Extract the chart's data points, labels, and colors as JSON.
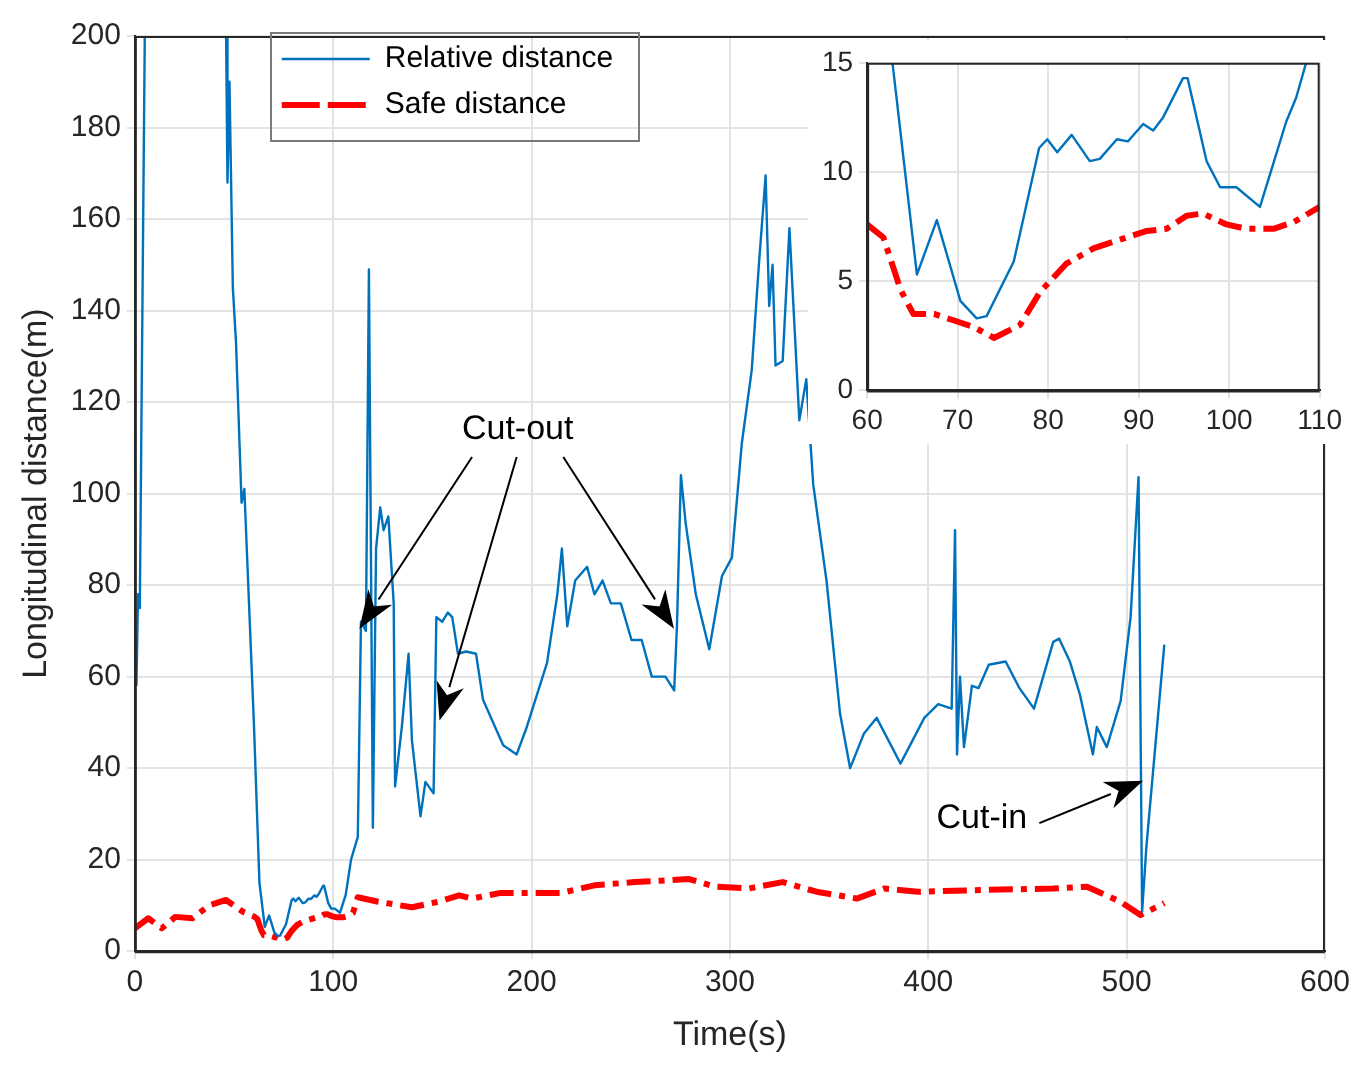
{
  "chart_data": [
    {
      "type": "line",
      "xlabel": "Time(s)",
      "ylabel": "Longitudinal distance(m)",
      "xlim": [
        0,
        600
      ],
      "xticks": [
        0,
        100,
        200,
        300,
        400,
        500,
        600
      ],
      "ylim": [
        0,
        200
      ],
      "yticks": [
        0,
        20,
        40,
        60,
        80,
        100,
        120,
        140,
        160,
        180,
        200
      ],
      "grid": true,
      "legend": "top left",
      "marker": "none",
      "annotations": [
        "Cut-out",
        "Cut-in"
      ],
      "series": [
        {
          "name": "Relative distance",
          "color": "#0072bd",
          "line_style": "solid",
          "x": [
            0.8,
            1.6,
            2.5,
            5,
            25,
            46,
            46.7,
            47.7,
            49.4,
            51,
            53.8,
            55.2,
            60,
            62.8,
            65.5,
            67.7,
            70.3,
            72.1,
            73.2,
            76.2,
            79,
            79.9,
            81,
            82.6,
            84.6,
            85.7,
            87.6,
            88.8,
            90.5,
            91.6,
            92.7,
            94.9,
            95.4,
            97.5,
            99,
            100.8,
            103.4,
            106.3,
            109,
            112.4,
            114,
            116.5,
            118,
            120,
            121.6,
            123.7,
            125.4,
            127.8,
            130.5,
            131.2,
            134.6,
            138,
            139.7,
            144,
            146.5,
            150.6,
            152,
            155,
            157.8,
            160,
            162.9,
            167,
            172,
            175.5,
            180.6,
            185.7,
            192.5,
            197.6,
            207.8,
            213,
            215.3,
            218,
            222,
            228,
            231.7,
            235.8,
            240,
            245,
            250.4,
            255.5,
            260.6,
            267.5,
            271.9,
            273.3,
            275.3,
            277.7,
            282.8,
            289.6,
            296,
            301,
            306,
            311,
            314.6,
            318,
            319.8,
            321.5,
            323,
            326.6,
            330,
            335,
            338.5,
            342,
            348.7,
            355.5,
            360.6,
            367.5,
            374,
            386,
            398,
            405,
            411.8,
            413.5,
            414.5,
            416,
            418,
            422,
            425.4,
            430.5,
            439,
            445.8,
            453.3,
            463,
            466,
            471.4,
            476.5,
            483,
            485,
            490,
            497,
            502,
            506,
            507.8,
            510,
            519
          ],
          "values": [
            58,
            78,
            75,
            200,
            null,
            200,
            168,
            190,
            145,
            133,
            98,
            101,
            50,
            15,
            5.3,
            7.8,
            4.1,
            3.3,
            3.4,
            5.9,
            11.1,
            11.5,
            10.9,
            11.7,
            10.5,
            10.6,
            11.5,
            11.4,
            12.2,
            11.9,
            12.5,
            14.3,
            14.3,
            10.5,
            9.3,
            9.3,
            8.4,
            12.3,
            20,
            25,
            72,
            70,
            149,
            27,
            88,
            97,
            92,
            95,
            76,
            36,
            49,
            65,
            46,
            29.5,
            37,
            34.5,
            73,
            72,
            74,
            73,
            65,
            65.5,
            65,
            55,
            50,
            45,
            43,
            49,
            63,
            78,
            88,
            71,
            81,
            84,
            78,
            81,
            76,
            76,
            68,
            68,
            60,
            60,
            57,
            71,
            104,
            93.5,
            78,
            66,
            82,
            86,
            111,
            127,
            150,
            169.5,
            141,
            150,
            128,
            129,
            158,
            116,
            125,
            102,
            81,
            52,
            40,
            47.5,
            51,
            41,
            51,
            54,
            53,
            92,
            43,
            60,
            44.6,
            58,
            57.5,
            62.6,
            63.3,
            57.6,
            53,
            67.6,
            68.3,
            63.3,
            56,
            43,
            49,
            44.6,
            54.7,
            73,
            103.6,
            8.6,
            23,
            67
          ]
        },
        {
          "name": "Safe distance",
          "color": "#ff0000",
          "line_style": "dashed",
          "x": [
            0,
            6.8,
            13.6,
            20.4,
            29,
            37.5,
            46,
            54.5,
            60,
            61.8,
            63.7,
            65.1,
            67.4,
            69.6,
            71.8,
            74,
            76.9,
            79.1,
            82,
            85,
            87.9,
            90.9,
            93.1,
            95.3,
            97.1,
            99.7,
            101.9,
            104.9,
            107.1,
            110,
            112.4,
            122.7,
            139.7,
            153,
            163.5,
            170,
            184,
            214.6,
            231.7,
            252,
            265,
            279,
            292.5,
            309.5,
            326.6,
            343.6,
            364,
            377.7,
            394.7,
            428.8,
            462.9,
            480,
            497,
            507,
            519
          ],
          "values": [
            5,
            7.2,
            5,
            7.5,
            7.2,
            10,
            11.2,
            8.6,
            7.6,
            7,
            4.6,
            3.5,
            3.5,
            3.2,
            2.9,
            2.4,
            3,
            4.5,
            5.8,
            6.5,
            6.9,
            7.3,
            7.4,
            8,
            8.1,
            7.6,
            7.4,
            7.4,
            7.7,
            8.4,
            11.8,
            10.8,
            9.6,
            10.8,
            12.2,
            11.5,
            12.7,
            12.7,
            14.4,
            15.1,
            15.4,
            15.8,
            14.1,
            13.7,
            15.1,
            13,
            11.5,
            13.7,
            13,
            13.4,
            13.7,
            14.1,
            10.8,
            7.9,
            10.5
          ]
        }
      ]
    },
    {
      "type": "line",
      "xlim": [
        60,
        110
      ],
      "xticks": [
        60,
        70,
        80,
        90,
        100,
        110
      ],
      "ylim": [
        0,
        15
      ],
      "yticks": [
        0,
        5,
        10,
        15
      ],
      "grid": true,
      "marker": "none",
      "series": [
        {
          "color": "#0072bd",
          "line_style": "solid",
          "x": [
            62.8,
            65.5,
            67.7,
            70.3,
            72.1,
            73.2,
            76.2,
            79,
            79.9,
            81,
            82.6,
            84.6,
            85.7,
            87.6,
            88.8,
            90.5,
            91.6,
            92.7,
            94.9,
            95.4,
            97.5,
            99,
            100.8,
            103.4,
            106.3,
            107.4,
            108.5
          ],
          "values": [
            15,
            5.3,
            7.8,
            4.1,
            3.3,
            3.4,
            5.9,
            11.1,
            11.5,
            10.9,
            11.7,
            10.5,
            10.6,
            11.5,
            11.4,
            12.2,
            11.9,
            12.5,
            14.3,
            14.3,
            10.5,
            9.3,
            9.3,
            8.4,
            12.3,
            13.4,
            15
          ]
        },
        {
          "color": "#ff0000",
          "line_style": "dashed",
          "x": [
            60,
            61.8,
            63.7,
            65.1,
            67.4,
            69.6,
            71.8,
            74,
            76.9,
            79.1,
            82,
            85,
            87.9,
            90.9,
            93.1,
            95.3,
            97.1,
            99.7,
            101.9,
            104.9,
            107.1,
            110
          ],
          "values": [
            7.6,
            7,
            4.6,
            3.5,
            3.5,
            3.2,
            2.9,
            2.4,
            3,
            4.5,
            5.8,
            6.5,
            6.9,
            7.3,
            7.4,
            8,
            8.1,
            7.6,
            7.4,
            7.4,
            7.7,
            8.4
          ]
        }
      ]
    }
  ]
}
